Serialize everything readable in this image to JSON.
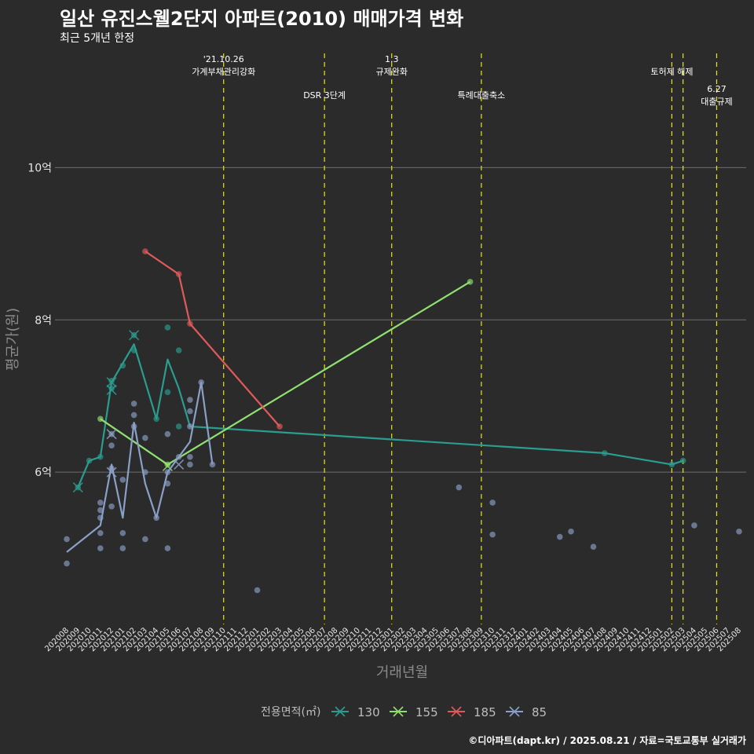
{
  "chart_data": {
    "type": "line",
    "title": "일산 유진스웰2단지 아파트(2010) 매매가격 변화",
    "subtitle": "최근 5개년 한정",
    "xlabel": "거래년월",
    "ylabel": "평균가(원)",
    "caption": "©디아파트(dapt.kr) / 2025.08.21 / 자료=국토교통부 실거래가",
    "legend_title": "전용면적(㎡)",
    "legend_position": "bottom",
    "grid": true,
    "x_categories": [
      "202008",
      "202009",
      "202010",
      "202011",
      "202012",
      "202101",
      "202102",
      "202103",
      "202104",
      "202105",
      "202106",
      "202107",
      "202108",
      "202109",
      "202110",
      "202111",
      "202112",
      "202201",
      "202202",
      "202203",
      "202204",
      "202205",
      "202206",
      "202207",
      "202208",
      "202209",
      "202210",
      "202211",
      "202212",
      "202301",
      "202302",
      "202303",
      "202304",
      "202305",
      "202306",
      "202307",
      "202308",
      "202309",
      "202310",
      "202311",
      "202312",
      "202401",
      "202402",
      "202403",
      "202404",
      "202405",
      "202406",
      "202407",
      "202408",
      "202409",
      "202410",
      "202411",
      "202412",
      "202501",
      "202502",
      "202503",
      "202504",
      "202505",
      "202506",
      "202507",
      "202508"
    ],
    "y_ticks": [
      {
        "value": 6,
        "label": "6억"
      },
      {
        "value": 8,
        "label": "8억"
      },
      {
        "value": 10,
        "label": "10억"
      }
    ],
    "ylim": [
      4.0,
      11.5
    ],
    "series": [
      {
        "name": "130",
        "color": "#2a9d8f",
        "line": [
          [
            "202009",
            5.8
          ],
          [
            "202010",
            6.15
          ],
          [
            "202011",
            6.2
          ],
          [
            "202012",
            7.18
          ],
          [
            "202102",
            7.68
          ],
          [
            "202104",
            6.7
          ],
          [
            "202105",
            7.48
          ],
          [
            "202106",
            7.1
          ],
          [
            "202107",
            6.6
          ],
          [
            "202408",
            6.25
          ],
          [
            "202502",
            6.1
          ],
          [
            "202503",
            6.15
          ]
        ],
        "points": [
          [
            "202009",
            5.8
          ],
          [
            "202010",
            6.15
          ],
          [
            "202011",
            6.2
          ],
          [
            "202012",
            7.2
          ],
          [
            "202012",
            7.1
          ],
          [
            "202101",
            7.4
          ],
          [
            "202102",
            7.8
          ],
          [
            "202102",
            7.6
          ],
          [
            "202104",
            6.7
          ],
          [
            "202105",
            7.9
          ],
          [
            "202105",
            7.05
          ],
          [
            "202106",
            7.6
          ],
          [
            "202106",
            6.6
          ],
          [
            "202408",
            6.25
          ],
          [
            "202502",
            6.1
          ],
          [
            "202503",
            6.15
          ]
        ],
        "crosses": [
          [
            "202009",
            5.8
          ],
          [
            "202012",
            7.18
          ],
          [
            "202012",
            7.08
          ],
          [
            "202102",
            7.8
          ]
        ]
      },
      {
        "name": "155",
        "color": "#90e070",
        "line": [
          [
            "202011",
            6.7
          ],
          [
            "202105",
            6.1
          ],
          [
            "202308",
            8.5
          ]
        ],
        "points": [
          [
            "202011",
            6.7
          ],
          [
            "202105",
            6.1
          ],
          [
            "202308",
            8.5
          ]
        ],
        "crosses": [
          [
            "202105",
            6.08
          ]
        ]
      },
      {
        "name": "185",
        "color": "#e05a5a",
        "line": [
          [
            "202103",
            8.9
          ],
          [
            "202106",
            8.6
          ],
          [
            "202107",
            7.95
          ],
          [
            "202203",
            6.6
          ]
        ],
        "points": [
          [
            "202103",
            8.9
          ],
          [
            "202106",
            8.6
          ],
          [
            "202107",
            7.95
          ],
          [
            "202203",
            6.6
          ]
        ],
        "crosses": []
      },
      {
        "name": "85",
        "color": "#8aa0c8",
        "line": [
          [
            "202008",
            4.95
          ],
          [
            "202011",
            5.3
          ],
          [
            "202012",
            6.1
          ],
          [
            "202101",
            5.4
          ],
          [
            "202102",
            6.65
          ],
          [
            "202103",
            5.85
          ],
          [
            "202104",
            5.4
          ],
          [
            "202105",
            6.0
          ],
          [
            "202106",
            6.2
          ],
          [
            "202107",
            6.4
          ],
          [
            "202108",
            7.18
          ],
          [
            "202109",
            6.1
          ]
        ],
        "points": [
          [
            "202008",
            5.12
          ],
          [
            "202008",
            4.8
          ],
          [
            "202011",
            5.6
          ],
          [
            "202011",
            5.5
          ],
          [
            "202011",
            5.4
          ],
          [
            "202011",
            5.2
          ],
          [
            "202011",
            5.0
          ],
          [
            "202012",
            6.5
          ],
          [
            "202012",
            6.35
          ],
          [
            "202012",
            6.05
          ],
          [
            "202012",
            5.55
          ],
          [
            "202101",
            5.9
          ],
          [
            "202101",
            5.2
          ],
          [
            "202101",
            5.0
          ],
          [
            "202102",
            6.9
          ],
          [
            "202102",
            6.75
          ],
          [
            "202102",
            6.6
          ],
          [
            "202103",
            6.45
          ],
          [
            "202103",
            6.0
          ],
          [
            "202103",
            5.12
          ],
          [
            "202104",
            5.4
          ],
          [
            "202105",
            6.5
          ],
          [
            "202105",
            6.0
          ],
          [
            "202105",
            5.85
          ],
          [
            "202105",
            5.0
          ],
          [
            "202106",
            6.2
          ],
          [
            "202107",
            6.95
          ],
          [
            "202107",
            6.8
          ],
          [
            "202107",
            6.6
          ],
          [
            "202107",
            6.2
          ],
          [
            "202107",
            6.1
          ],
          [
            "202108",
            7.18
          ],
          [
            "202109",
            6.1
          ],
          [
            "202201",
            4.45
          ],
          [
            "202307",
            5.8
          ],
          [
            "202310",
            5.6
          ],
          [
            "202310",
            5.18
          ],
          [
            "202404",
            5.15
          ],
          [
            "202405",
            5.22
          ],
          [
            "202407",
            5.02
          ],
          [
            "202504",
            5.3
          ],
          [
            "202508",
            5.22
          ]
        ],
        "crosses": [
          [
            "202012",
            6.5
          ],
          [
            "202012",
            6.0
          ],
          [
            "202106",
            6.1
          ]
        ]
      }
    ],
    "events": [
      {
        "x": "202110",
        "label_lines": [
          "'21.10.26",
          "가계부채관리강화"
        ],
        "level": 0
      },
      {
        "x": "202207",
        "label_lines": [
          "DSR 3단계"
        ],
        "level": 1
      },
      {
        "x": "202301",
        "label_lines": [
          "1.3",
          "규제완화"
        ],
        "level": 0
      },
      {
        "x": "202309",
        "label_lines": [
          "특례대출축소"
        ],
        "level": 1
      },
      {
        "x": "202502",
        "label_lines": [
          "토허제 해제"
        ],
        "level": 0
      },
      {
        "x": "202503",
        "label_lines": [],
        "level": 0
      },
      {
        "x": "202506",
        "label_lines": [
          "6.27",
          "대출규제"
        ],
        "level": 1
      }
    ]
  }
}
